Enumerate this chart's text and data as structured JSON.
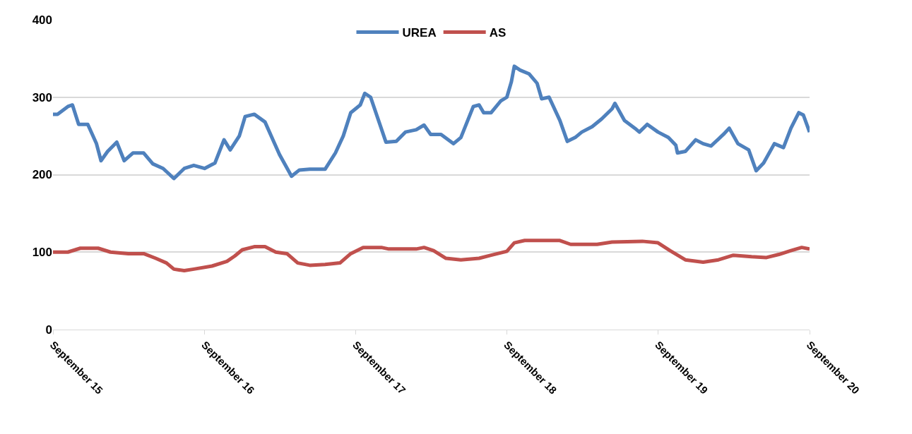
{
  "chart_data": {
    "type": "line",
    "xlim": [
      "2015-09",
      "2020-09"
    ],
    "ylim": [
      0,
      400
    ],
    "xticks": [
      {
        "value": "2015-09",
        "label": "September 15"
      },
      {
        "value": "2016-09",
        "label": "September 16"
      },
      {
        "value": "2017-09",
        "label": "September 17"
      },
      {
        "value": "2018-09",
        "label": "September 18"
      },
      {
        "value": "2019-09",
        "label": "September 19"
      },
      {
        "value": "2020-09",
        "label": "September 20"
      }
    ],
    "yticks": [
      0,
      100,
      200,
      300,
      400
    ],
    "grid": "y",
    "legend": "top",
    "line_style": "solid",
    "marker": "none",
    "series": [
      {
        "name": "UREA",
        "color": "#4f81bd",
        "x": [
          "2015-09-01",
          "2015-09-12",
          "2015-10-07",
          "2015-10-18",
          "2015-11-02",
          "2015-11-24",
          "2015-12-15",
          "2015-12-26",
          "2016-01-11",
          "2016-02-02",
          "2016-02-20",
          "2016-03-12",
          "2016-04-07",
          "2016-04-29",
          "2016-05-24",
          "2016-06-19",
          "2016-07-14",
          "2016-08-06",
          "2016-09-01",
          "2016-09-26",
          "2016-10-18",
          "2016-11-02",
          "2016-11-24",
          "2016-12-08",
          "2016-12-30",
          "2017-01-25",
          "2017-02-13",
          "2017-03-01",
          "2017-03-30",
          "2017-04-18",
          "2017-05-13",
          "2017-06-19",
          "2017-07-14",
          "2017-08-02",
          "2017-08-20",
          "2017-09-12",
          "2017-09-23",
          "2017-10-07",
          "2017-11-13",
          "2017-12-08",
          "2017-12-30",
          "2018-01-25",
          "2018-02-13",
          "2018-03-01",
          "2018-03-26",
          "2018-04-25",
          "2018-05-13",
          "2018-06-12",
          "2018-06-26",
          "2018-07-07",
          "2018-07-25",
          "2018-08-17",
          "2018-09-01",
          "2018-09-12",
          "2018-09-19",
          "2018-10-03",
          "2018-10-25",
          "2018-11-13",
          "2018-11-24",
          "2018-12-12",
          "2019-01-07",
          "2019-01-25",
          "2019-02-13",
          "2019-03-01",
          "2019-03-26",
          "2019-04-18",
          "2019-05-13",
          "2019-05-20",
          "2019-06-12",
          "2019-07-07",
          "2019-07-18",
          "2019-08-06",
          "2019-09-01",
          "2019-09-26",
          "2019-10-14",
          "2019-10-18",
          "2019-11-06",
          "2019-12-01",
          "2019-12-19",
          "2020-01-07",
          "2020-02-06",
          "2020-02-20",
          "2020-03-12",
          "2020-04-07",
          "2020-04-25",
          "2020-05-13",
          "2020-06-08",
          "2020-06-30",
          "2020-07-18",
          "2020-08-06",
          "2020-08-17",
          "2020-09-01"
        ],
        "values": [
          278,
          278,
          288,
          290,
          265,
          265,
          240,
          218,
          230,
          242,
          218,
          228,
          228,
          214,
          208,
          195,
          208,
          212,
          208,
          215,
          245,
          232,
          250,
          275,
          278,
          268,
          245,
          226,
          198,
          206,
          207,
          207,
          228,
          250,
          280,
          290,
          305,
          300,
          242,
          243,
          255,
          258,
          264,
          252,
          252,
          240,
          248,
          288,
          290,
          280,
          280,
          295,
          300,
          320,
          340,
          335,
          330,
          318,
          298,
          300,
          270,
          243,
          248,
          255,
          262,
          272,
          285,
          292,
          270,
          260,
          255,
          265,
          255,
          248,
          238,
          228,
          230,
          245,
          240,
          237,
          252,
          260,
          240,
          232,
          205,
          215,
          240,
          235,
          260,
          280,
          277,
          255
        ]
      },
      {
        "name": "AS",
        "color": "#c0504d",
        "x": [
          "2015-09-01",
          "2015-10-07",
          "2015-11-06",
          "2015-12-19",
          "2016-01-18",
          "2016-03-01",
          "2016-04-07",
          "2016-05-06",
          "2016-06-01",
          "2016-06-19",
          "2016-07-14",
          "2016-08-06",
          "2016-09-19",
          "2016-10-25",
          "2016-11-13",
          "2016-12-01",
          "2016-12-30",
          "2017-01-25",
          "2017-02-20",
          "2017-03-19",
          "2017-04-14",
          "2017-05-13",
          "2017-06-19",
          "2017-07-25",
          "2017-08-20",
          "2017-09-19",
          "2017-11-02",
          "2017-11-20",
          "2018-01-25",
          "2018-02-13",
          "2018-03-08",
          "2018-04-07",
          "2018-05-13",
          "2018-06-26",
          "2018-07-25",
          "2018-09-01",
          "2018-09-19",
          "2018-10-14",
          "2019-01-07",
          "2019-02-02",
          "2019-04-07",
          "2019-05-13",
          "2019-07-25",
          "2019-09-01",
          "2019-09-30",
          "2019-11-06",
          "2019-12-19",
          "2020-01-25",
          "2020-03-01",
          "2020-04-14",
          "2020-05-20",
          "2020-06-19",
          "2020-07-18",
          "2020-08-13",
          "2020-09-01"
        ],
        "values": [
          100,
          100,
          105,
          105,
          100,
          98,
          98,
          92,
          86,
          78,
          76,
          78,
          82,
          88,
          95,
          103,
          107,
          107,
          100,
          98,
          86,
          83,
          84,
          86,
          98,
          106,
          106,
          104,
          104,
          106,
          102,
          92,
          90,
          92,
          96,
          101,
          112,
          115,
          115,
          110,
          110,
          113,
          114,
          112,
          102,
          90,
          87,
          90,
          96,
          94,
          93,
          97,
          102,
          106,
          104
        ]
      }
    ]
  }
}
